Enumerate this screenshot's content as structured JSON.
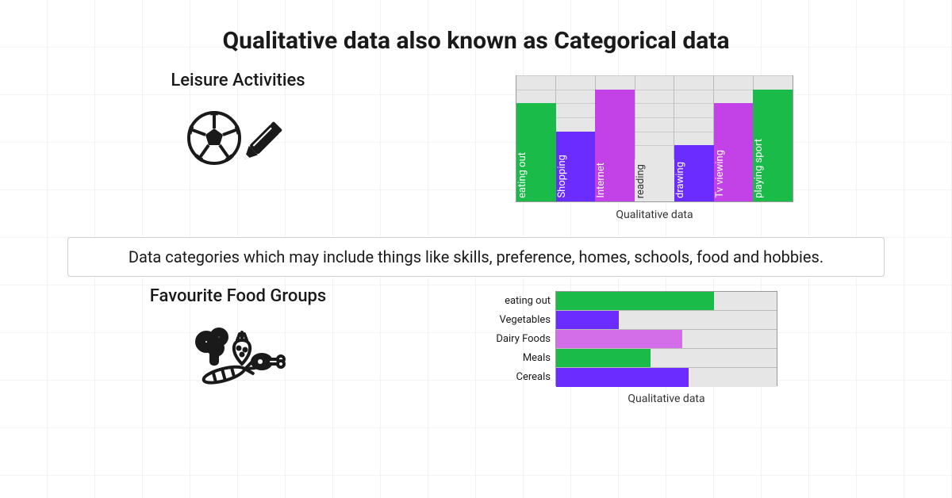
{
  "title": "Qualitative data also known as Categorical data",
  "description": "Data categories which may include things like skills, preference, homes, schools, food and hobbies.",
  "colors": {
    "title": "#1a1a1a",
    "text": "#1a1a1a",
    "grid_bg": "#e6e6e6",
    "grid_line": "#cccccc",
    "axis": "#999999",
    "page_grid": "#f3f3f3"
  },
  "leisure": {
    "heading": "Leisure Activities",
    "chart": {
      "type": "bar-vertical",
      "caption": "Qualitative data",
      "max": 9,
      "grid_rows": 9,
      "bar_label_color": "#ffffff",
      "bars": [
        {
          "label": "eating out",
          "value": 7,
          "color": "#1bbb49"
        },
        {
          "label": "Shopping",
          "value": 5,
          "color": "#6a2cff"
        },
        {
          "label": "Internet",
          "value": 8,
          "color": "#c242e8"
        },
        {
          "label": "reading",
          "value": 3,
          "color": "#e6e6e6",
          "text_color": "#333333"
        },
        {
          "label": "drawing",
          "value": 4,
          "color": "#6a2cff"
        },
        {
          "label": "Tv viewing",
          "value": 7,
          "color": "#c242e8"
        },
        {
          "label": "playing sport",
          "value": 8,
          "color": "#1bbb49"
        }
      ]
    }
  },
  "food": {
    "heading": "Favourite Food Groups",
    "chart": {
      "type": "bar-horizontal",
      "caption": "Qualitative data",
      "max": 7,
      "grid_cols": 7,
      "bars": [
        {
          "label": "eating out",
          "value": 5,
          "color": "#1bbb49"
        },
        {
          "label": "Vegetables",
          "value": 2,
          "color": "#6a2cff"
        },
        {
          "label": "Dairy Foods",
          "value": 4,
          "color": "#d36ee8"
        },
        {
          "label": "Meals",
          "value": 3,
          "color": "#1bbb49"
        },
        {
          "label": "Cereals",
          "value": 4.2,
          "color": "#6a2cff"
        }
      ]
    }
  }
}
